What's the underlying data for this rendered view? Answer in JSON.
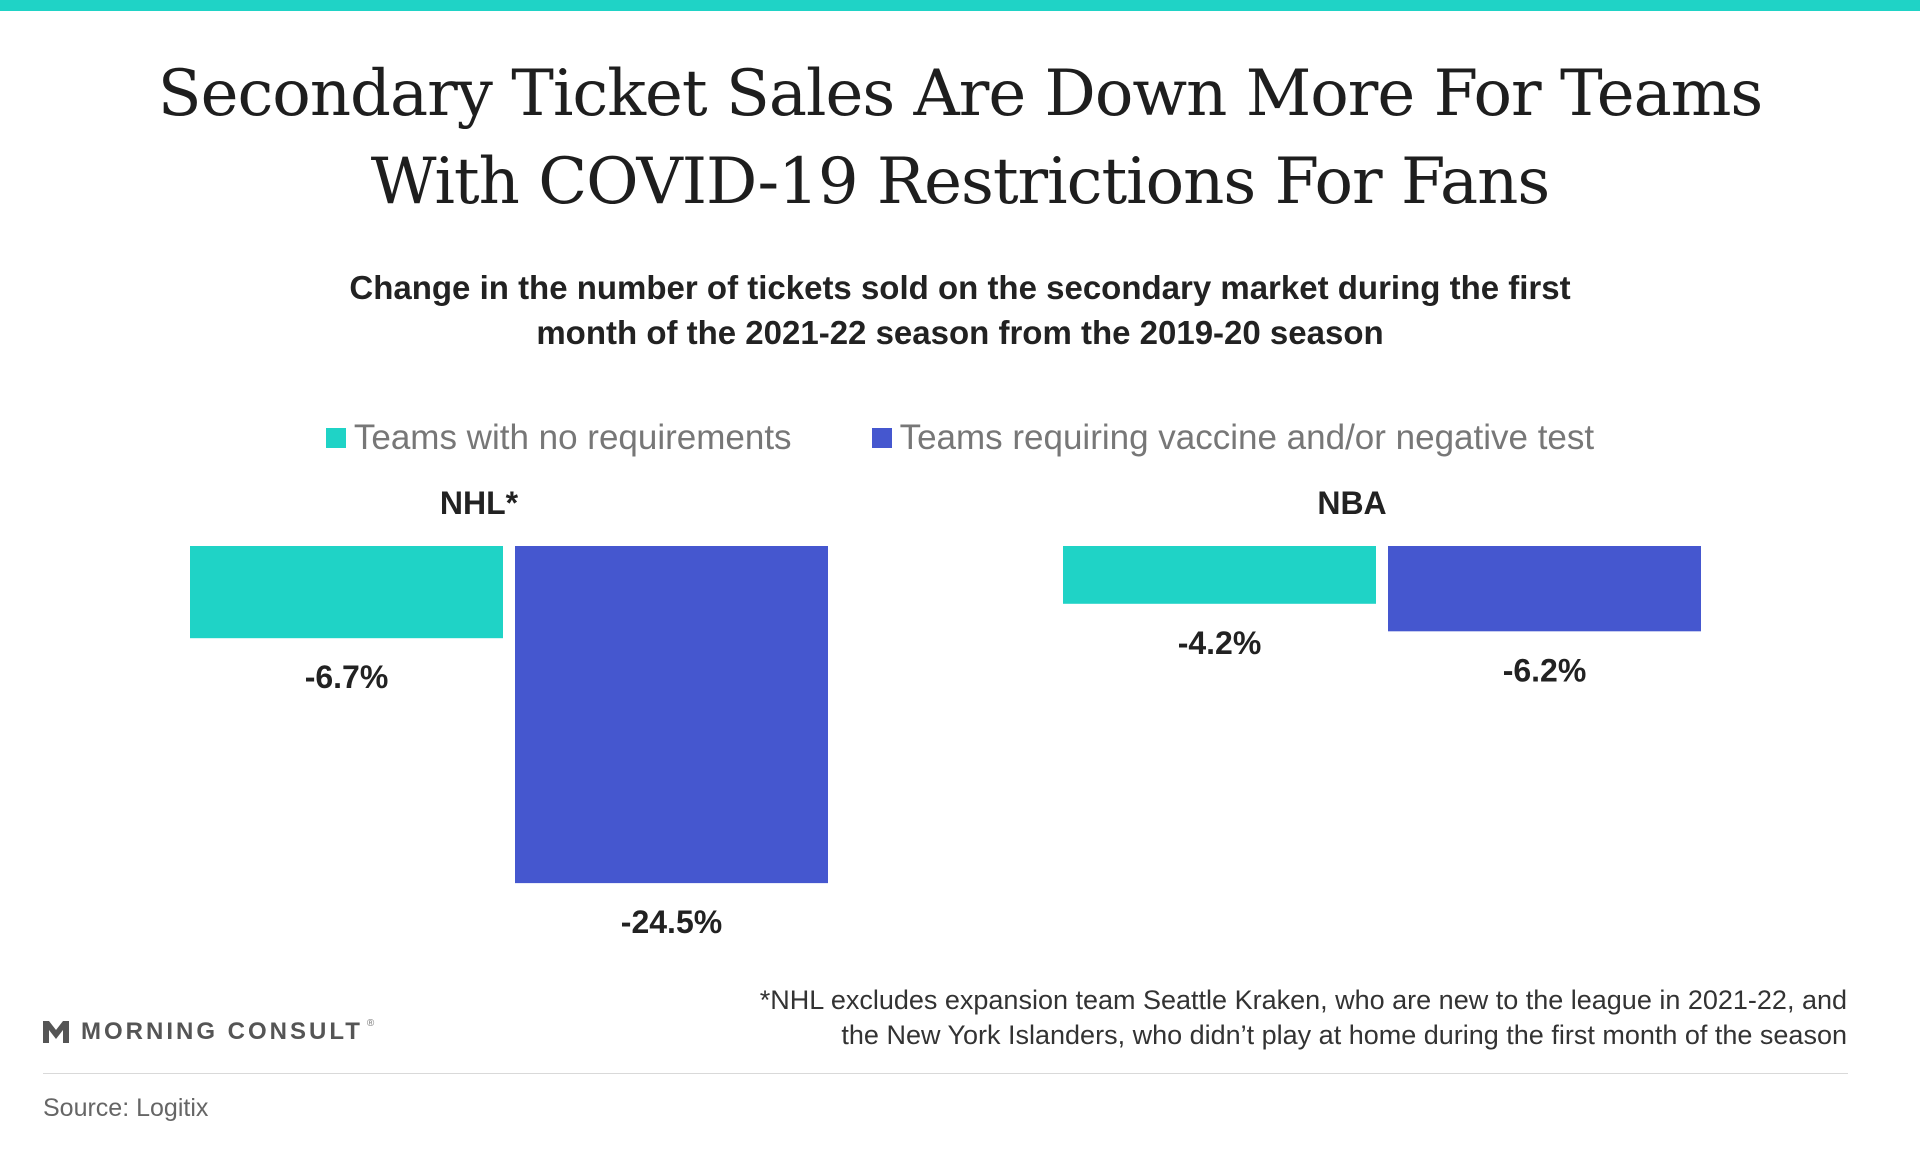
{
  "title_lines": [
    "Secondary Ticket Sales Are Down More For Teams",
    "With COVID-19 Restrictions For Fans"
  ],
  "subtitle_lines": [
    "Change in the number of tickets sold on the secondary market during the first",
    "month of the 2021-22 season from the 2019-20 season"
  ],
  "legend": [
    {
      "label": "Teams with no requirements",
      "color": "#1fd3c6"
    },
    {
      "label": "Teams requiring vaccine and/or negative test",
      "color": "#4557cf"
    }
  ],
  "chart_data": {
    "type": "bar",
    "title": "Secondary Ticket Sales Are Down More For Teams With COVID-19 Restrictions For Fans",
    "subtitle": "Change in the number of tickets sold on the secondary market during the first month of the 2021-22 season from the 2019-20 season",
    "categories": [
      "NHL*",
      "NBA"
    ],
    "series": [
      {
        "name": "Teams with no requirements",
        "color": "#1fd3c6",
        "values": [
          -6.7,
          -4.2
        ],
        "labels": [
          "-6.7%",
          "-4.2%"
        ]
      },
      {
        "name": "Teams requiring vaccine and/or negative test",
        "color": "#4557cf",
        "values": [
          -24.5,
          -6.2
        ],
        "labels": [
          "-24.5%",
          "-6.2%"
        ]
      }
    ],
    "ylim": [
      -24.5,
      0
    ],
    "grid": false,
    "legend_position": "top"
  },
  "footnote_lines": [
    "*NHL excludes expansion team Seattle Kraken, who are new to the league in 2021-22, and",
    "the New York Islanders, who didn’t play at home during the first month of the season"
  ],
  "brand": {
    "name": "MORNING CONSULT",
    "mark": "®"
  },
  "source": "Source: Logitix"
}
